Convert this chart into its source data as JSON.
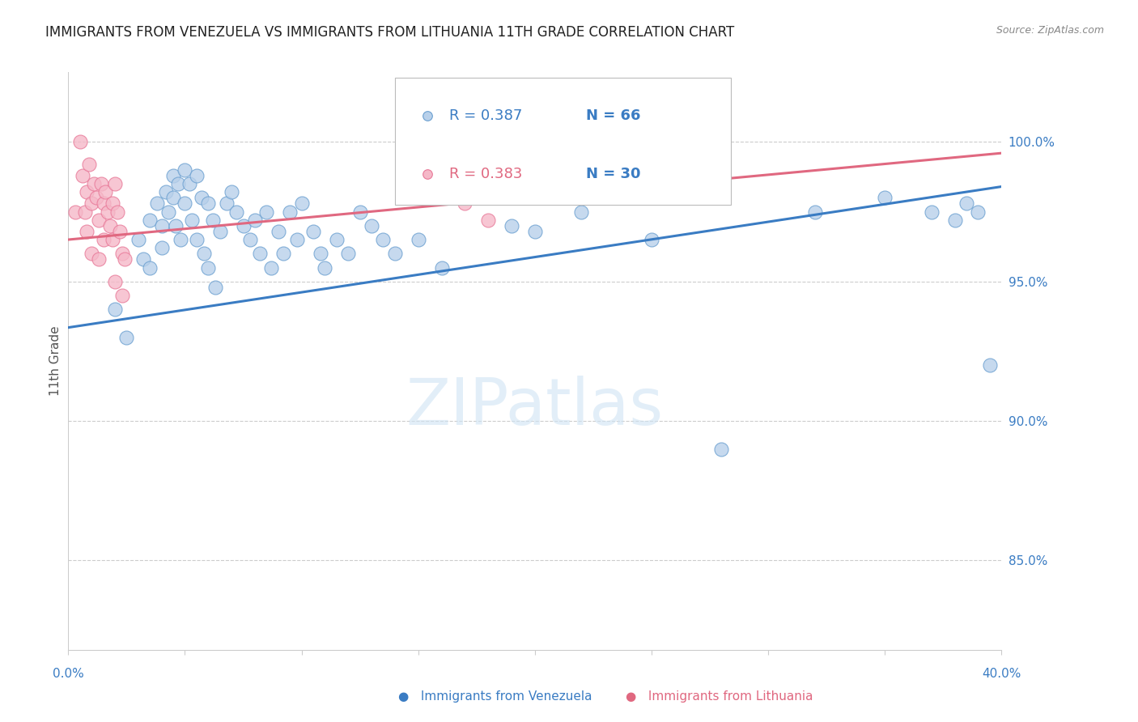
{
  "title": "IMMIGRANTS FROM VENEZUELA VS IMMIGRANTS FROM LITHUANIA 11TH GRADE CORRELATION CHART",
  "source": "Source: ZipAtlas.com",
  "ylabel": "11th Grade",
  "ytick_labels": [
    "100.0%",
    "95.0%",
    "90.0%",
    "85.0%"
  ],
  "ytick_values": [
    1.0,
    0.95,
    0.9,
    0.85
  ],
  "xlim": [
    0.0,
    0.4
  ],
  "ylim": [
    0.818,
    1.025
  ],
  "legend_blue_label": "Immigrants from Venezuela",
  "legend_pink_label": "Immigrants from Lithuania",
  "legend_r_blue": "0.387",
  "legend_n_blue": "66",
  "legend_r_pink": "0.383",
  "legend_n_pink": "30",
  "blue_dot_color": "#b8d0ea",
  "pink_dot_color": "#f5b8c8",
  "blue_edge_color": "#6a9fd0",
  "pink_edge_color": "#e87898",
  "blue_line_color": "#3a7cc3",
  "pink_line_color": "#e06880",
  "blue_legend_r_color": "#3a7cc3",
  "pink_legend_r_color": "#e06880",
  "n_color": "#3a7cc3",
  "watermark_color": "#d0e4f4",
  "gridline_color": "#cccccc",
  "title_color": "#222222",
  "ylabel_color": "#555555",
  "axis_tick_color": "#3a7cc3",
  "source_color": "#888888",
  "blue_scatter_x": [
    0.02,
    0.025,
    0.03,
    0.032,
    0.035,
    0.035,
    0.038,
    0.04,
    0.04,
    0.042,
    0.043,
    0.045,
    0.045,
    0.046,
    0.047,
    0.048,
    0.05,
    0.05,
    0.052,
    0.053,
    0.055,
    0.055,
    0.057,
    0.058,
    0.06,
    0.06,
    0.062,
    0.063,
    0.065,
    0.068,
    0.07,
    0.072,
    0.075,
    0.078,
    0.08,
    0.082,
    0.085,
    0.087,
    0.09,
    0.092,
    0.095,
    0.098,
    0.1,
    0.105,
    0.108,
    0.11,
    0.115,
    0.12,
    0.125,
    0.13,
    0.135,
    0.14,
    0.15,
    0.16,
    0.19,
    0.2,
    0.22,
    0.25,
    0.28,
    0.32,
    0.35,
    0.37,
    0.38,
    0.385,
    0.39,
    0.395
  ],
  "blue_scatter_y": [
    0.94,
    0.93,
    0.965,
    0.958,
    0.972,
    0.955,
    0.978,
    0.97,
    0.962,
    0.982,
    0.975,
    0.988,
    0.98,
    0.97,
    0.985,
    0.965,
    0.99,
    0.978,
    0.985,
    0.972,
    0.988,
    0.965,
    0.98,
    0.96,
    0.978,
    0.955,
    0.972,
    0.948,
    0.968,
    0.978,
    0.982,
    0.975,
    0.97,
    0.965,
    0.972,
    0.96,
    0.975,
    0.955,
    0.968,
    0.96,
    0.975,
    0.965,
    0.978,
    0.968,
    0.96,
    0.955,
    0.965,
    0.96,
    0.975,
    0.97,
    0.965,
    0.96,
    0.965,
    0.955,
    0.97,
    0.968,
    0.975,
    0.965,
    0.89,
    0.975,
    0.98,
    0.975,
    0.972,
    0.978,
    0.975,
    0.92
  ],
  "pink_scatter_x": [
    0.003,
    0.005,
    0.006,
    0.007,
    0.008,
    0.008,
    0.009,
    0.01,
    0.01,
    0.011,
    0.012,
    0.013,
    0.013,
    0.014,
    0.015,
    0.015,
    0.016,
    0.017,
    0.018,
    0.019,
    0.019,
    0.02,
    0.02,
    0.021,
    0.022,
    0.023,
    0.023,
    0.024,
    0.17,
    0.18
  ],
  "pink_scatter_y": [
    0.975,
    1.0,
    0.988,
    0.975,
    0.982,
    0.968,
    0.992,
    0.978,
    0.96,
    0.985,
    0.98,
    0.972,
    0.958,
    0.985,
    0.978,
    0.965,
    0.982,
    0.975,
    0.97,
    0.965,
    0.978,
    0.985,
    0.95,
    0.975,
    0.968,
    0.96,
    0.945,
    0.958,
    0.978,
    0.972
  ],
  "blue_line_x": [
    0.0,
    0.4
  ],
  "blue_line_y": [
    0.9335,
    0.984
  ],
  "pink_line_x": [
    0.0,
    0.4
  ],
  "pink_line_y": [
    0.965,
    0.996
  ],
  "title_fontsize": 12,
  "source_fontsize": 9,
  "legend_fontsize": 13,
  "ylabel_fontsize": 11,
  "xtick_fontsize": 11,
  "ytick_fontsize": 11
}
